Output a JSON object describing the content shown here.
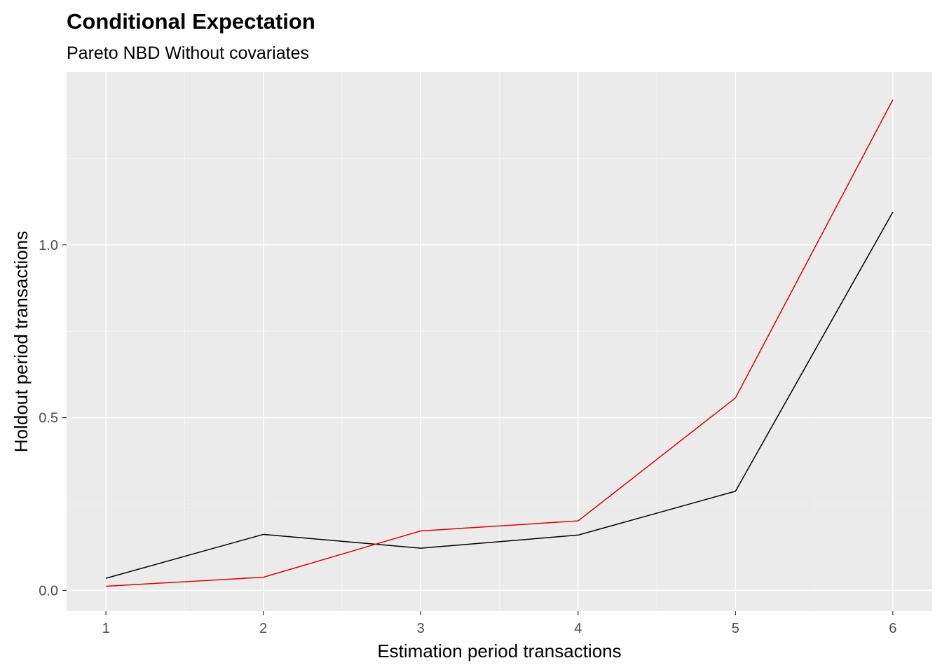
{
  "chart_data": {
    "type": "line",
    "title": "Conditional Expectation",
    "subtitle": "Pareto NBD Without covariates",
    "xlabel": "Estimation period transactions",
    "ylabel": "Holdout period transactions",
    "x": [
      1,
      2,
      3,
      4,
      5,
      6
    ],
    "x_ticks": [
      "1",
      "2",
      "3",
      "4",
      "5",
      "6"
    ],
    "y_ticks": [
      "0.0",
      "0.5",
      "1.0"
    ],
    "y_tick_values": [
      0.0,
      0.5,
      1.0
    ],
    "xlim": [
      0.75,
      6.25
    ],
    "ylim": [
      -0.06,
      1.5
    ],
    "grid": true,
    "legend": "none",
    "series": [
      {
        "color": "#000000",
        "values": [
          0.035,
          0.162,
          0.122,
          0.16,
          0.287,
          1.095
        ]
      },
      {
        "color": "#e00000",
        "values": [
          0.012,
          0.038,
          0.172,
          0.201,
          0.557,
          1.42
        ]
      }
    ]
  },
  "colors": {
    "panel_background": "#ebebeb",
    "grid_major": "#ffffff",
    "grid_minor": "#f5f5f5"
  }
}
